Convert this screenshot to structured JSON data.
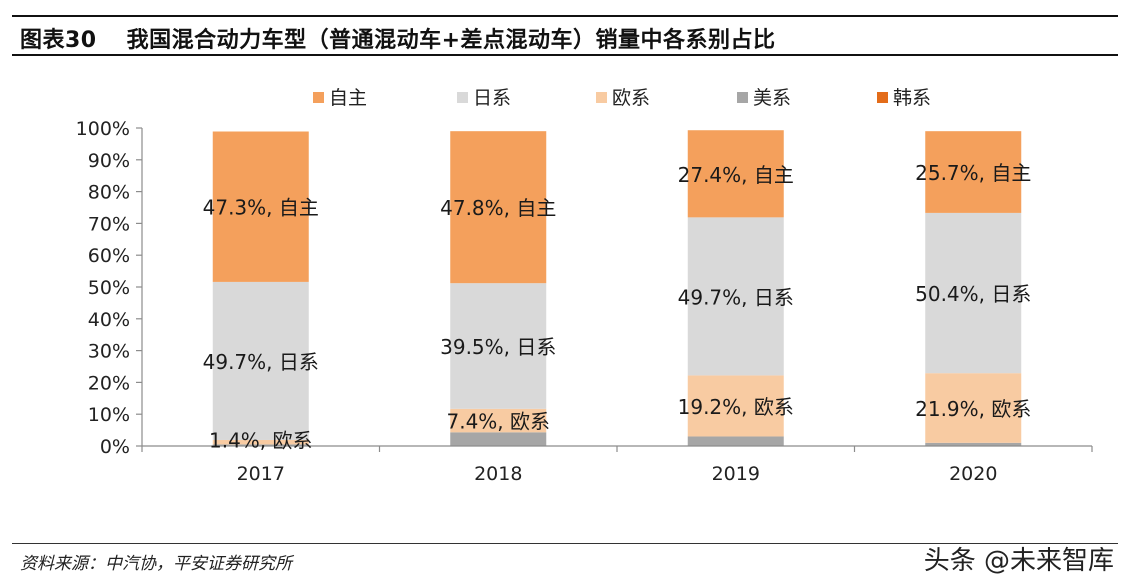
{
  "figure": {
    "number": "图表30",
    "title": "我国混合动力车型（普通混动车+差点混动车）销量中各系别占比"
  },
  "source": "资料来源：中汽协，平安证券研究所",
  "watermark": "头条 @未来智库",
  "chart_data": {
    "type": "bar",
    "stacked": true,
    "categories": [
      "2017",
      "2018",
      "2019",
      "2020"
    ],
    "ylim": [
      0,
      100
    ],
    "yticks": [
      "0%",
      "10%",
      "20%",
      "30%",
      "40%",
      "50%",
      "60%",
      "70%",
      "80%",
      "90%",
      "100%"
    ],
    "legend_position": "top",
    "grid": false,
    "series": [
      {
        "name": "美系",
        "color": "#a6a6a6",
        "values": [
          0.5,
          4.3,
          3.0,
          1.0
        ]
      },
      {
        "name": "欧系",
        "color": "#f8cba2",
        "values": [
          1.4,
          7.4,
          19.2,
          21.9
        ]
      },
      {
        "name": "日系",
        "color": "#d9d9d9",
        "values": [
          49.7,
          39.5,
          49.7,
          50.4
        ]
      },
      {
        "name": "自主",
        "color": "#f4a05c",
        "values": [
          47.3,
          47.8,
          27.4,
          25.7
        ]
      },
      {
        "name": "韩系",
        "color": "#e36c1a",
        "values": [
          0,
          0,
          0,
          0
        ]
      }
    ],
    "legend_order": [
      "自主",
      "日系",
      "欧系",
      "美系",
      "韩系"
    ],
    "annotations": [
      {
        "category": "2017",
        "series": "自主",
        "text": "47.3%, 自主"
      },
      {
        "category": "2017",
        "series": "日系",
        "text": "49.7%, 日系"
      },
      {
        "category": "2017",
        "series": "欧系",
        "text": "1.4%, 欧系"
      },
      {
        "category": "2018",
        "series": "自主",
        "text": "47.8%, 自主"
      },
      {
        "category": "2018",
        "series": "日系",
        "text": "39.5%, 日系"
      },
      {
        "category": "2018",
        "series": "欧系",
        "text": "7.4%, 欧系"
      },
      {
        "category": "2019",
        "series": "自主",
        "text": "27.4%, 自主"
      },
      {
        "category": "2019",
        "series": "日系",
        "text": "49.7%, 日系"
      },
      {
        "category": "2019",
        "series": "欧系",
        "text": "19.2%, 欧系"
      },
      {
        "category": "2020",
        "series": "自主",
        "text": "25.7%, 自主"
      },
      {
        "category": "2020",
        "series": "日系",
        "text": "50.4%, 日系"
      },
      {
        "category": "2020",
        "series": "欧系",
        "text": "21.9%, 欧系"
      }
    ]
  }
}
